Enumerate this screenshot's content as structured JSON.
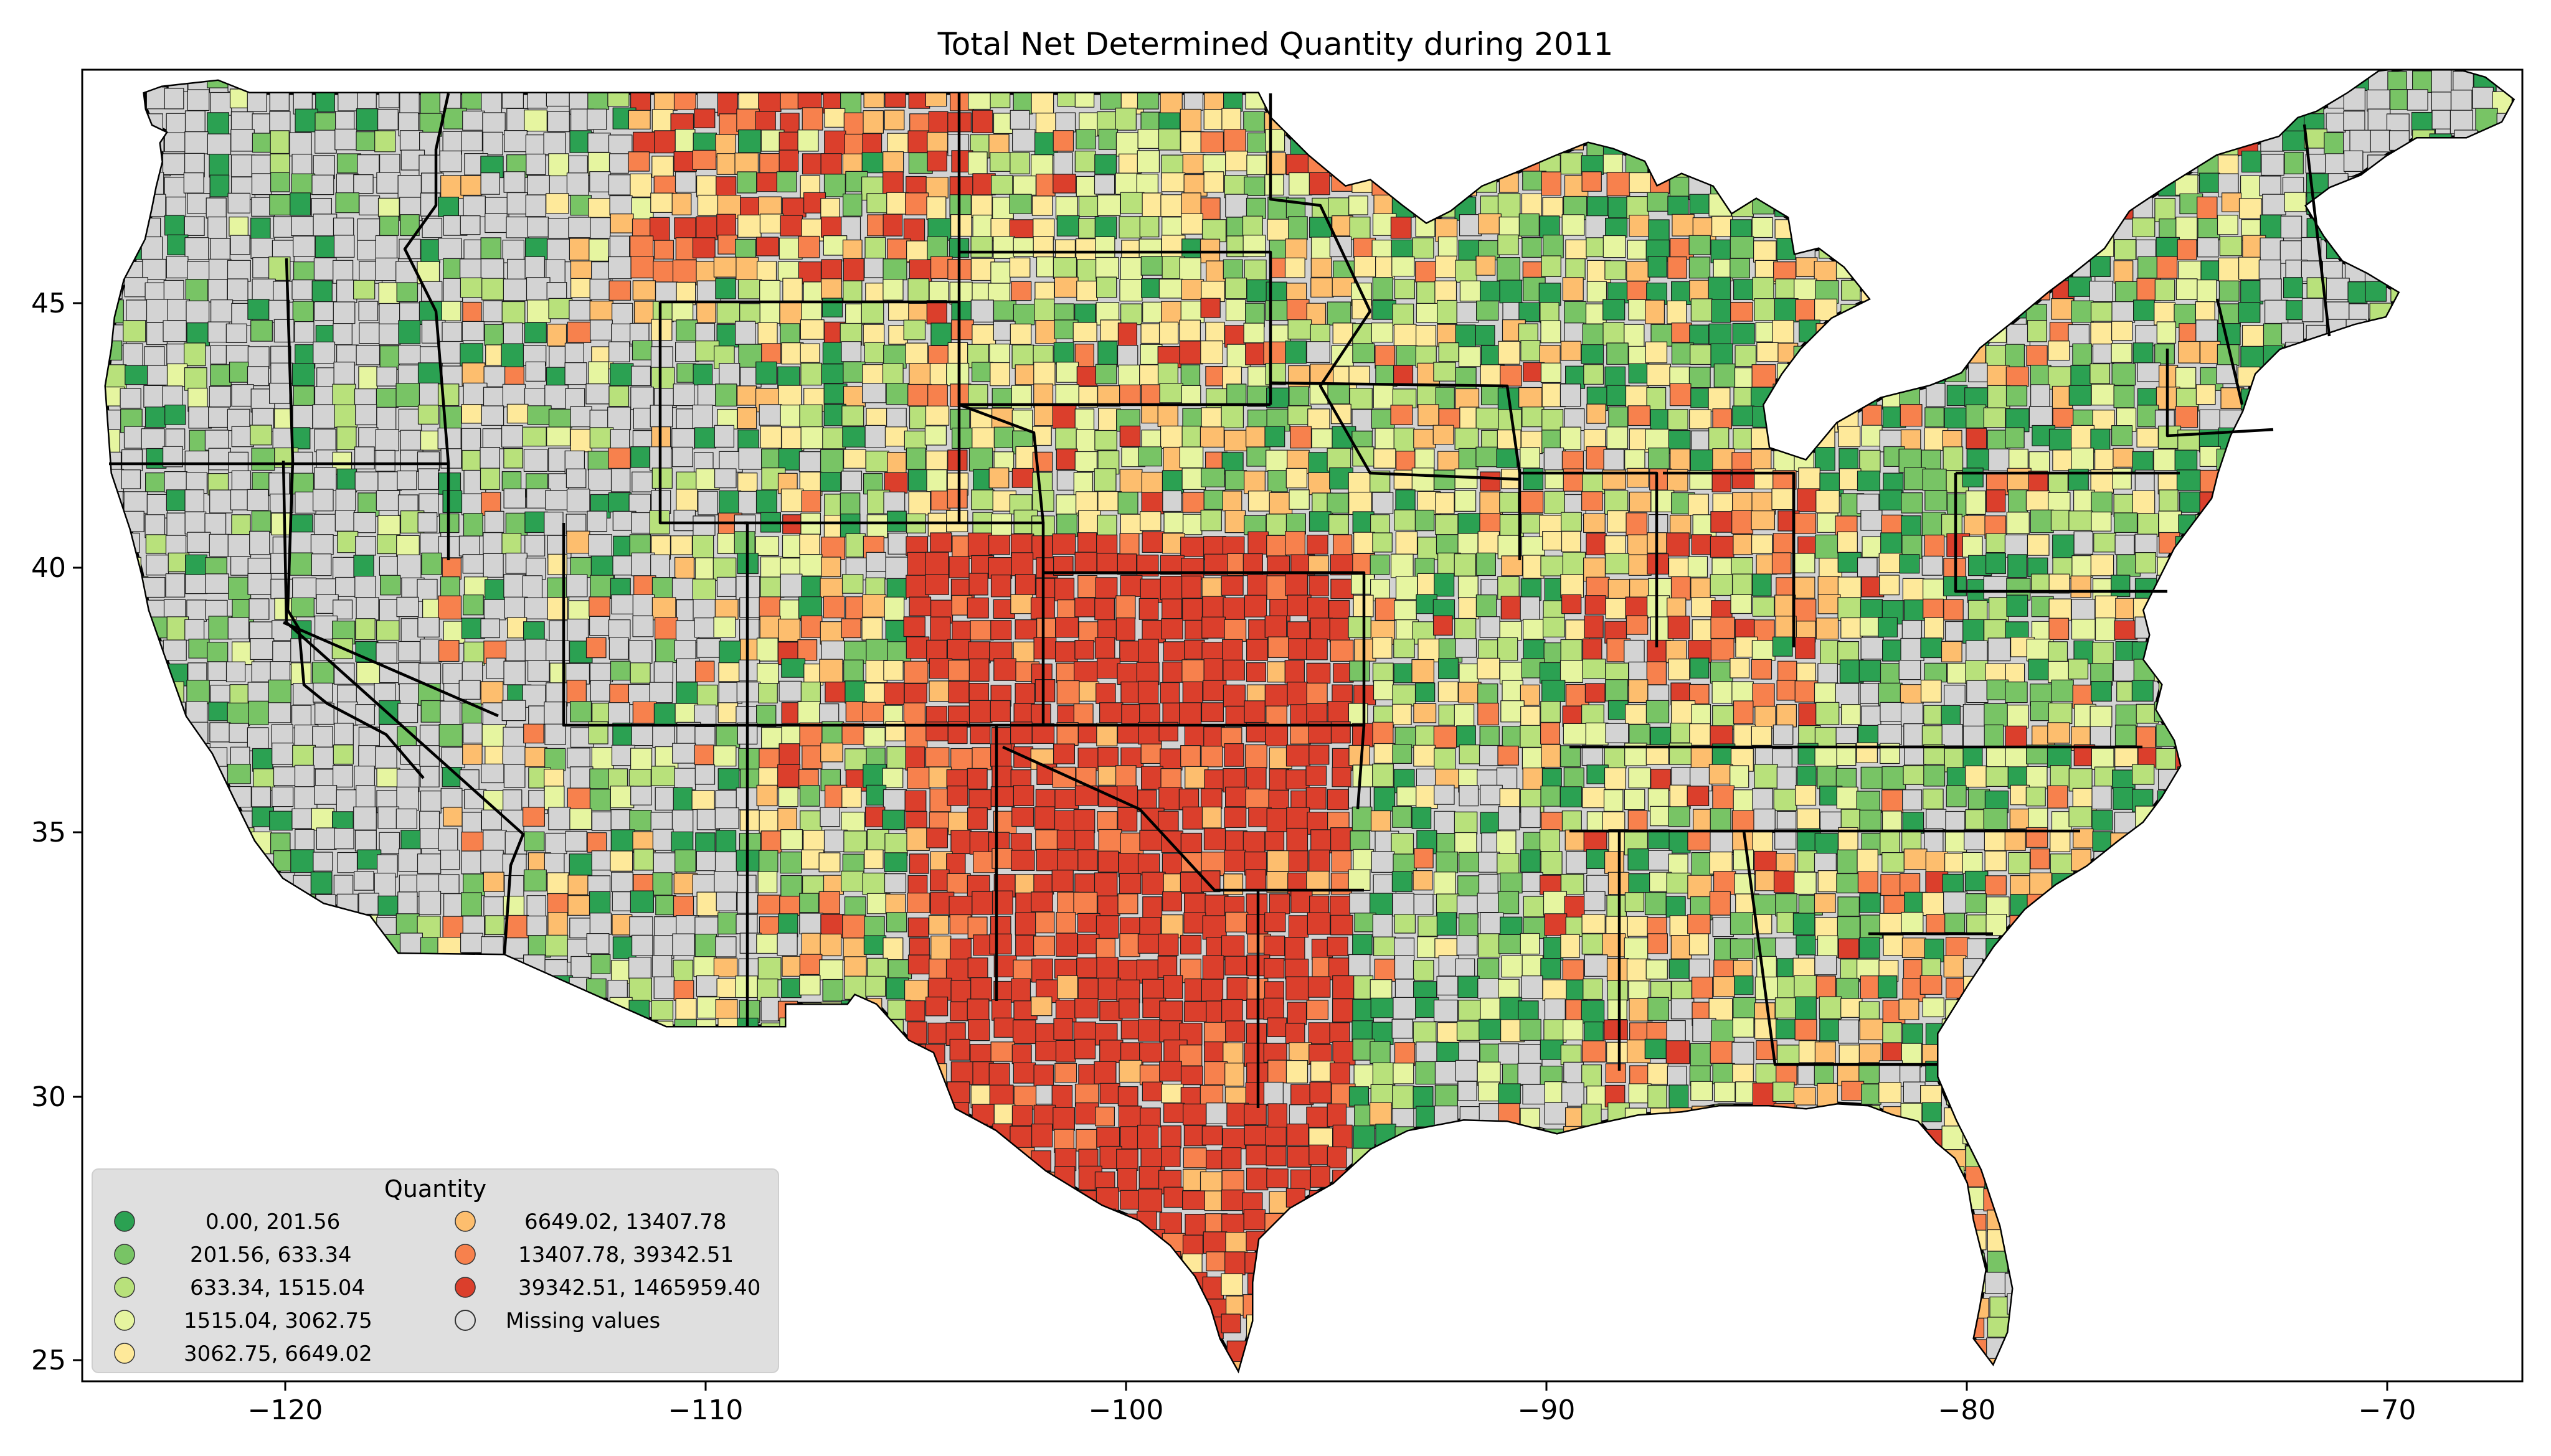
{
  "title": "Total Net Determined Quantity during 2011",
  "axes": {
    "x_ticks": [
      "−120",
      "−110",
      "−100",
      "−90",
      "−80",
      "−70"
    ],
    "y_ticks": [
      "25",
      "30",
      "35",
      "40",
      "45"
    ]
  },
  "legend": {
    "title": "Quantity",
    "entries": [
      {
        "label": "0.00,     201.56",
        "color": "#2ba152"
      },
      {
        "label": "201.56,     633.34",
        "color": "#78c465"
      },
      {
        "label": "633.34,    1515.04",
        "color": "#b8e17b"
      },
      {
        "label": "1515.04,    3062.75",
        "color": "#e6f5a0"
      },
      {
        "label": "3062.75,    6649.02",
        "color": "#fee99a"
      },
      {
        "label": "6649.02,   13407.78",
        "color": "#fdbe6e"
      },
      {
        "label": "13407.78,   39342.51",
        "color": "#f7814d"
      },
      {
        "label": "39342.51, 1465959.40",
        "color": "#db3f2c"
      },
      {
        "label": "Missing values",
        "color": "#d3d3d3"
      }
    ]
  },
  "colors": {
    "missing": "#d3d3d3",
    "frame": "#000000",
    "legend_bg": "#dcdcdc"
  }
}
